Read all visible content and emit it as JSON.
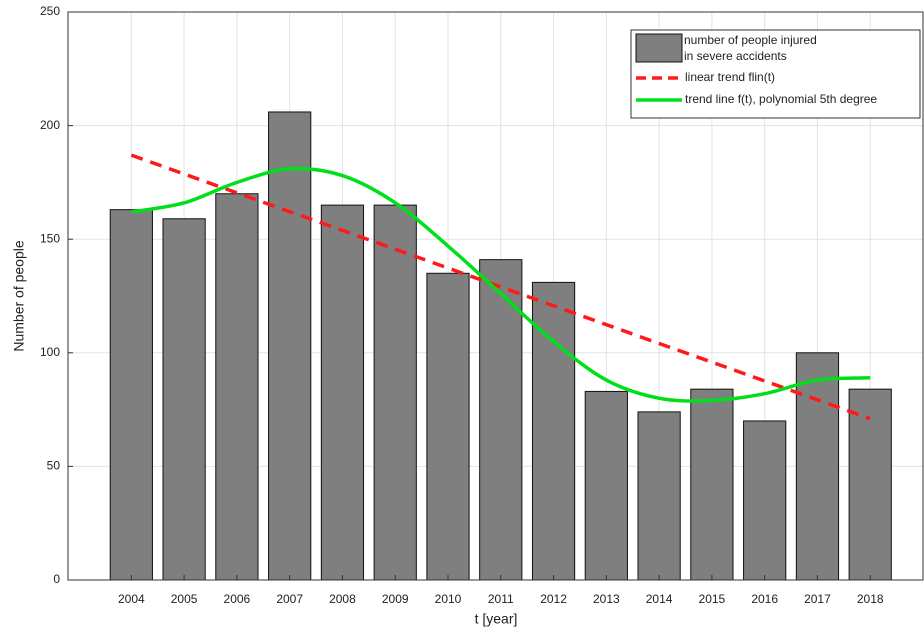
{
  "chart_data": {
    "type": "bar",
    "x": [
      2004,
      2005,
      2006,
      2007,
      2008,
      2009,
      2010,
      2011,
      2012,
      2013,
      2014,
      2015,
      2016,
      2017,
      2018
    ],
    "xlim": [
      2002.8,
      2019
    ],
    "xticks": [
      2004,
      2005,
      2006,
      2007,
      2008,
      2009,
      2010,
      2011,
      2012,
      2013,
      2014,
      2015,
      2016,
      2017,
      2018
    ],
    "ylim": [
      0,
      250
    ],
    "yticks": [
      0,
      50,
      100,
      150,
      200,
      250
    ],
    "xlabel": "t [year]",
    "ylabel": "Number of people",
    "grid": true,
    "legend": "upper right",
    "series": [
      {
        "name": "number of people injured in severe accidents",
        "type": "bar",
        "color": "#7f7f7f",
        "values": [
          163,
          159,
          170,
          206,
          165,
          165,
          135,
          141,
          131,
          83,
          74,
          84,
          70,
          100,
          84
        ]
      },
      {
        "name": "linear trend flin(t)",
        "type": "line",
        "style": "dashed",
        "color": "#ff1a1a",
        "values": [
          187,
          178.7,
          170.4,
          162.1,
          153.9,
          145.6,
          137.3,
          129,
          120.7,
          112.4,
          104.1,
          95.9,
          87.6,
          79.3,
          71
        ]
      },
      {
        "name": "trend line f(t), polynomial 5th degree",
        "type": "line",
        "style": "solid",
        "color": "#00e01a",
        "values": [
          162,
          166,
          175,
          181,
          178,
          166,
          147,
          126,
          105,
          88,
          80,
          79,
          82,
          88,
          89
        ]
      }
    ]
  }
}
